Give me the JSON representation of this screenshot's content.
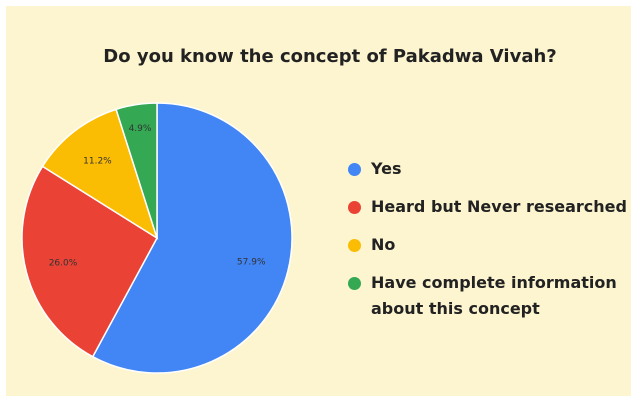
{
  "chart_data": {
    "type": "pie",
    "title": "Do you know the concept of Pakadwa Vivah?",
    "categories": [
      "Yes",
      "Heard but Never researched",
      "No",
      "Have complete information about this concept"
    ],
    "values": [
      57.9,
      26.0,
      11.2,
      4.9
    ],
    "value_labels": [
      "57.9%",
      "26.0%",
      "11.2%",
      "4.9%"
    ],
    "colors": [
      "#4285f4",
      "#ea4335",
      "#fbbc04",
      "#34a853"
    ],
    "legend": "right"
  }
}
